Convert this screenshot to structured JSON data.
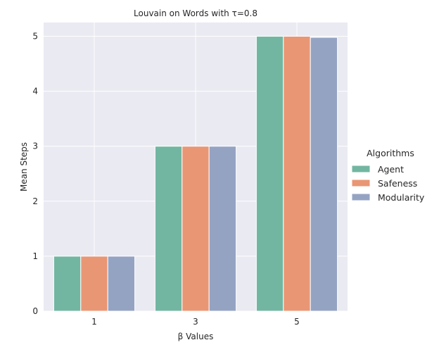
{
  "chart_data": {
    "type": "bar",
    "title": "Louvain on Words with τ=0.8",
    "xlabel": "β Values",
    "ylabel": "Mean Steps",
    "categories": [
      "1",
      "3",
      "5"
    ],
    "series": [
      {
        "name": "Agent",
        "values": [
          1,
          3,
          5
        ],
        "color": "#72b6a1"
      },
      {
        "name": "Safeness",
        "values": [
          1,
          3,
          5
        ],
        "color": "#e99675"
      },
      {
        "name": "Modularity",
        "values": [
          1,
          3,
          4.98
        ],
        "color": "#95a3c3"
      }
    ],
    "ylim": [
      0,
      5.25
    ],
    "yticks": [
      0,
      1,
      2,
      3,
      4,
      5
    ],
    "grid": true,
    "background": "#eaeaf2",
    "legend": {
      "title": "Algorithms",
      "placement": "right"
    }
  }
}
